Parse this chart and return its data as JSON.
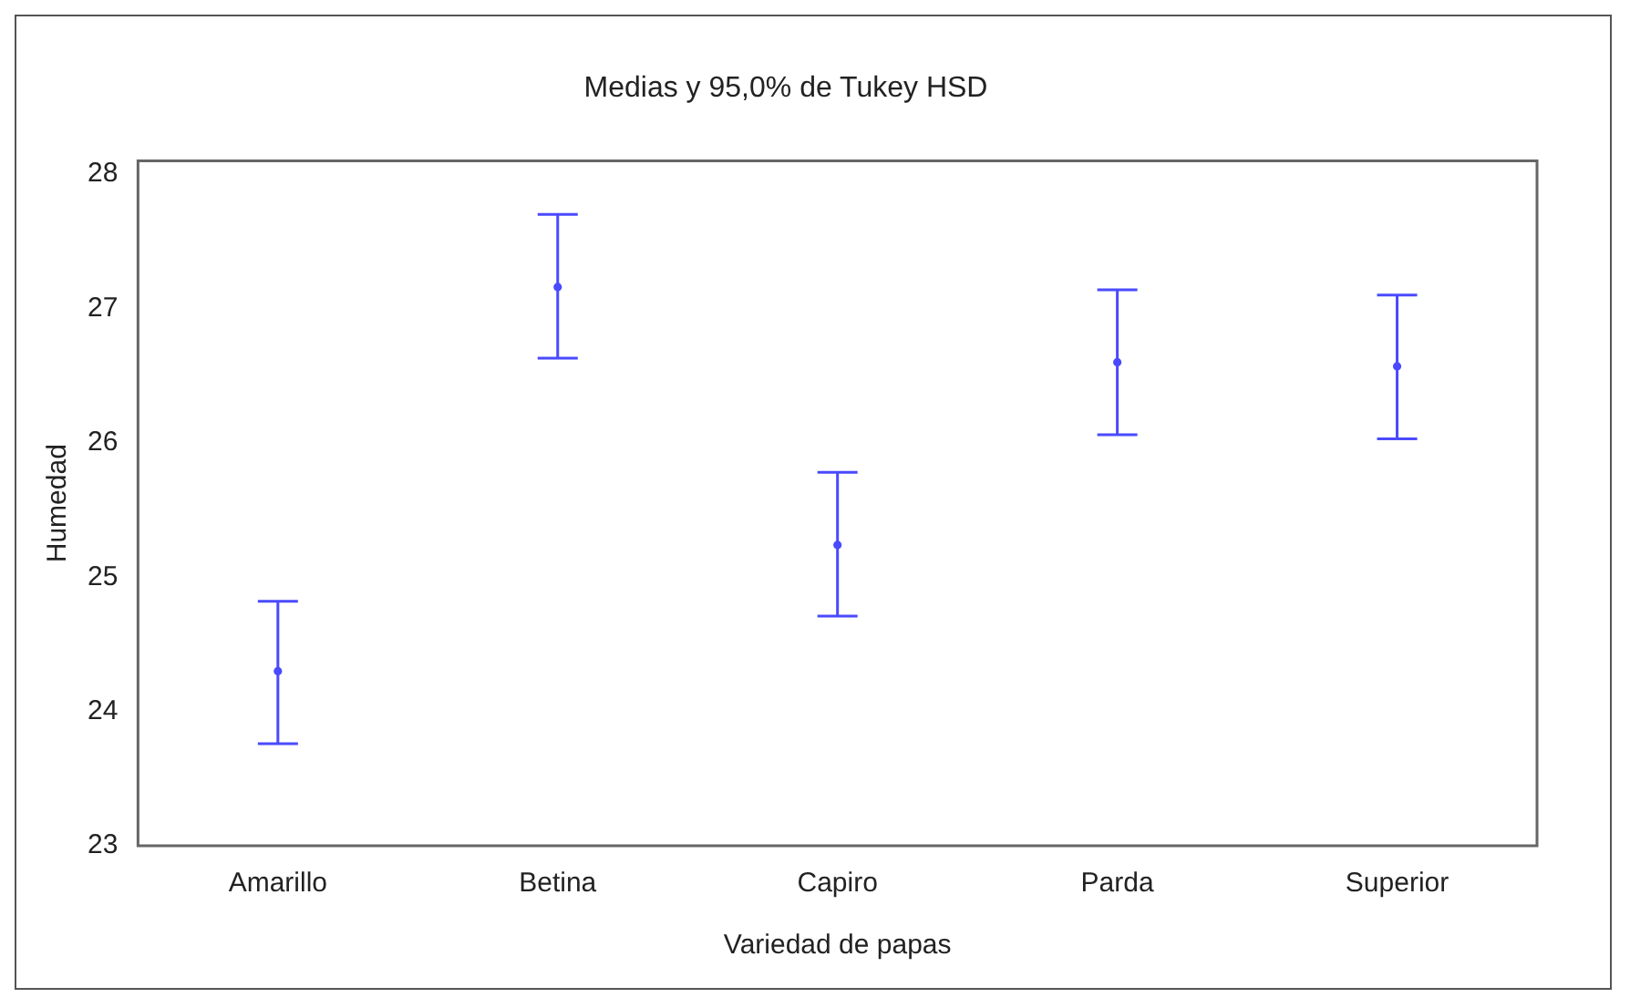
{
  "chart_data": {
    "type": "scatter",
    "title": "Medias y 95,0% de Tukey HSD",
    "xlabel": "Variedad de papas",
    "ylabel": "Humedad",
    "categories": [
      "Amarillo",
      "Betina",
      "Capiro",
      "Parda",
      "Superior"
    ],
    "series": [
      {
        "color": "#4a4aff",
        "values": [
          24.3,
          27.16,
          25.24,
          26.6,
          26.57
        ],
        "errors": [
          [
            23.76,
            24.82
          ],
          [
            26.63,
            27.7
          ],
          [
            24.71,
            25.78
          ],
          [
            26.06,
            27.14
          ],
          [
            26.03,
            27.1
          ]
        ]
      }
    ],
    "ylim": [
      23,
      28.1
    ],
    "yticks": [
      23,
      24,
      25,
      26,
      27,
      28
    ],
    "grid": false,
    "legend": false,
    "marker": "circle"
  }
}
